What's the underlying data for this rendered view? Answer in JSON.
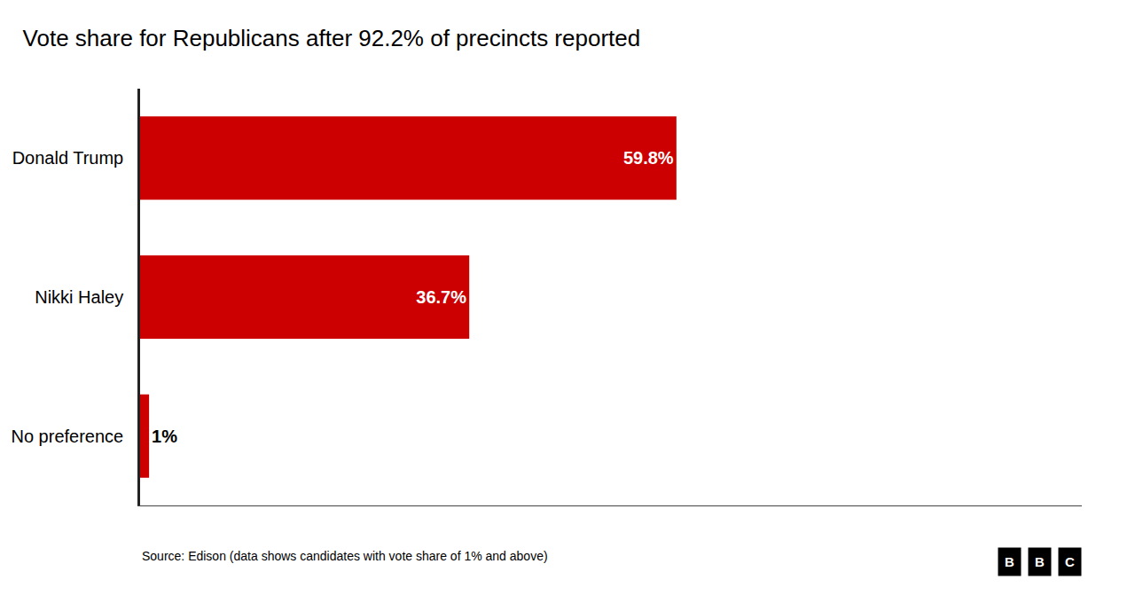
{
  "chart_data": {
    "type": "bar",
    "orientation": "horizontal",
    "title": "Vote share for Republicans after 92.2% of precincts reported",
    "categories": [
      "Donald Trump",
      "Nikki Haley",
      "No preference"
    ],
    "values": [
      59.8,
      36.7,
      1.0
    ],
    "value_labels": [
      "59.8%",
      "36.7%",
      "1%"
    ],
    "data_labels": true,
    "color": "#cc0000",
    "xlim": [
      0,
      105
    ],
    "xticks": [],
    "tick_labels": "y",
    "grid": false,
    "annotations": [
      "Source: Edison (data shows candidates with vote share of 1% and above)",
      "B",
      "B",
      "C"
    ]
  }
}
